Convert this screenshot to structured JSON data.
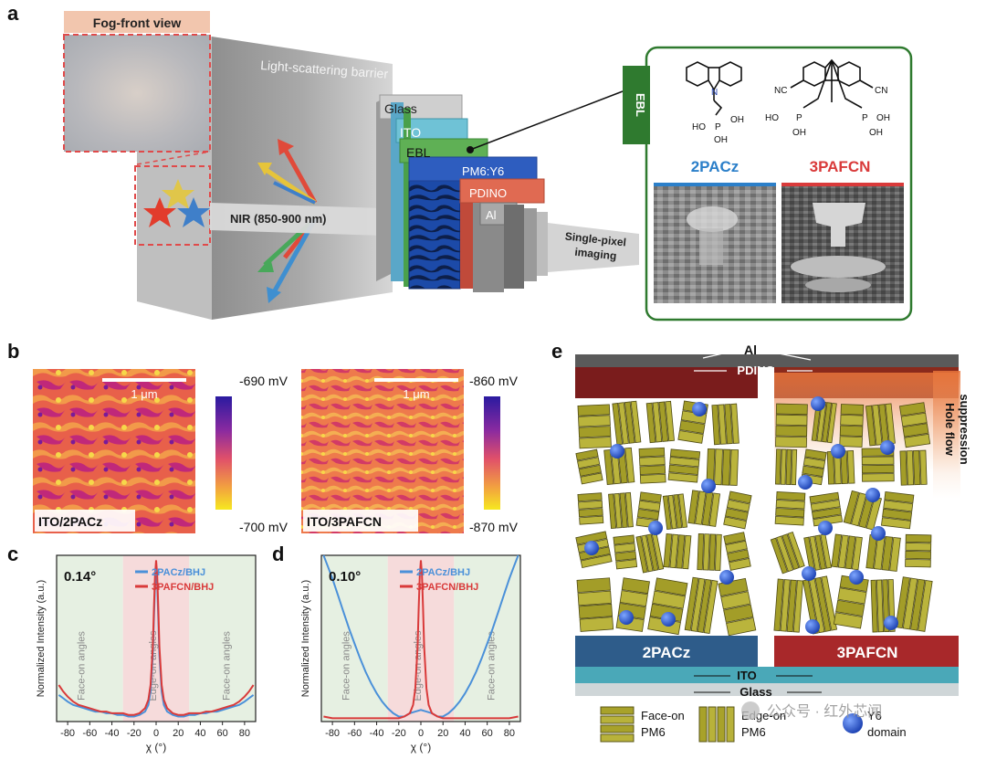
{
  "panels": {
    "a": {
      "letter": "a",
      "fog_label": "Fog-front view",
      "barrier_label": "Light-scattering barrier",
      "nir_label": "NIR (850-900 nm)",
      "layers": [
        "Glass",
        "ITO",
        "EBL",
        "PM6:Y6",
        "PDINO",
        "Al"
      ],
      "imaging_label": [
        "Single-pixel",
        "imaging"
      ],
      "inset": {
        "side_label": "EBL",
        "mol1": {
          "name": "2PACz",
          "color": "#2b7fc9"
        },
        "mol2": {
          "name": "3PAFCN",
          "color": "#d93a3a"
        },
        "mol1_groups": [
          "HO",
          "OH",
          "OH"
        ],
        "mol2_groups": [
          "NC",
          "CN",
          "HO",
          "OH",
          "OH",
          "OH"
        ]
      }
    },
    "b": {
      "letter": "b",
      "left": {
        "scale_bar": "1 μm",
        "label": "ITO/2PACz",
        "max": "-690 mV",
        "min": "-700 mV"
      },
      "right": {
        "scale_bar": "1 μm",
        "label": "ITO/3PAFCN",
        "max": "-860 mV",
        "min": "-870 mV"
      }
    },
    "c": {
      "letter": "c",
      "angle": "0.14°"
    },
    "d": {
      "letter": "d",
      "angle": "0.10°"
    },
    "e": {
      "letter": "e",
      "al_label": "Al",
      "pdino_label": "PDINO",
      "hole_label": [
        "Hole flow",
        "suppression"
      ],
      "left_base": "2PACz",
      "right_base": "3PAFCN",
      "ito_label": "ITO",
      "glass_label": "Glass",
      "legend": [
        {
          "label": [
            "Face-on",
            "PM6"
          ]
        },
        {
          "label": [
            "Edge-on",
            "PM6"
          ]
        },
        {
          "label": [
            "Y6",
            "domain"
          ]
        }
      ],
      "watermark": "公众号 · 红外芯闻"
    }
  },
  "chart_data": [
    {
      "type": "line",
      "panel": "c",
      "xlabel": "χ (°)",
      "ylabel": "Normalized Intensity (a.u.)",
      "xlim": [
        -90,
        90
      ],
      "ylim": [
        0,
        1
      ],
      "xticks": [
        -80,
        -60,
        -40,
        -20,
        0,
        20,
        40,
        60,
        80
      ],
      "regions": [
        {
          "label": "Face-on angles",
          "range": [
            -90,
            -30
          ],
          "color": "#e6f0e2"
        },
        {
          "label": "Edge-on angles",
          "range": [
            -30,
            30
          ],
          "color": "#f6dbdb"
        },
        {
          "label": "Face-on angles",
          "range": [
            30,
            90
          ],
          "color": "#e6f0e2"
        }
      ],
      "series": [
        {
          "name": "2PACz/BHJ",
          "color": "#4a90d9",
          "x": [
            -88,
            -84,
            -80,
            -75,
            -70,
            -65,
            -60,
            -55,
            -50,
            -45,
            -40,
            -35,
            -30,
            -25,
            -20,
            -15,
            -10,
            -7,
            -5,
            -3,
            -2,
            -1,
            0,
            1,
            2,
            3,
            5,
            7,
            10,
            15,
            20,
            25,
            30,
            35,
            40,
            45,
            50,
            55,
            60,
            65,
            70,
            75,
            80,
            84,
            88
          ],
          "y": [
            0.16,
            0.14,
            0.12,
            0.1,
            0.09,
            0.08,
            0.07,
            0.06,
            0.06,
            0.05,
            0.05,
            0.04,
            0.04,
            0.03,
            0.03,
            0.04,
            0.06,
            0.1,
            0.18,
            0.4,
            0.62,
            0.82,
            0.9,
            0.82,
            0.62,
            0.4,
            0.18,
            0.1,
            0.06,
            0.04,
            0.03,
            0.03,
            0.04,
            0.04,
            0.05,
            0.05,
            0.06,
            0.06,
            0.07,
            0.08,
            0.09,
            0.1,
            0.12,
            0.14,
            0.16
          ]
        },
        {
          "name": "3PAFCN/BHJ",
          "color": "#d93a3a",
          "x": [
            -88,
            -84,
            -80,
            -75,
            -70,
            -65,
            -60,
            -55,
            -50,
            -45,
            -40,
            -35,
            -30,
            -25,
            -20,
            -15,
            -10,
            -7,
            -5,
            -3,
            -2,
            -1,
            0,
            1,
            2,
            3,
            5,
            7,
            10,
            15,
            20,
            25,
            30,
            35,
            40,
            45,
            50,
            55,
            60,
            65,
            70,
            75,
            80,
            84,
            88
          ],
          "y": [
            0.22,
            0.18,
            0.15,
            0.12,
            0.1,
            0.09,
            0.08,
            0.07,
            0.06,
            0.06,
            0.05,
            0.05,
            0.05,
            0.04,
            0.04,
            0.05,
            0.08,
            0.13,
            0.22,
            0.45,
            0.68,
            0.88,
            0.97,
            0.88,
            0.68,
            0.45,
            0.22,
            0.13,
            0.08,
            0.05,
            0.04,
            0.04,
            0.05,
            0.05,
            0.05,
            0.06,
            0.06,
            0.07,
            0.08,
            0.09,
            0.1,
            0.12,
            0.15,
            0.18,
            0.22
          ]
        }
      ]
    },
    {
      "type": "line",
      "panel": "d",
      "xlabel": "χ (°)",
      "ylabel": "Normalized Intensity (a.u.)",
      "xlim": [
        -90,
        90
      ],
      "ylim": [
        0,
        1
      ],
      "xticks": [
        -80,
        -60,
        -40,
        -20,
        0,
        20,
        40,
        60,
        80
      ],
      "regions": [
        {
          "label": "Face-on angles",
          "range": [
            -90,
            -30
          ],
          "color": "#e6f0e2"
        },
        {
          "label": "Edge-on angles",
          "range": [
            -30,
            30
          ],
          "color": "#f6dbdb"
        },
        {
          "label": "Face-on angles",
          "range": [
            30,
            90
          ],
          "color": "#e6f0e2"
        }
      ],
      "series": [
        {
          "name": "2PACz/BHJ",
          "color": "#4a90d9",
          "x": [
            -88,
            -84,
            -80,
            -75,
            -70,
            -65,
            -60,
            -55,
            -50,
            -45,
            -40,
            -35,
            -30,
            -25,
            -20,
            -15,
            -10,
            -5,
            0,
            5,
            10,
            15,
            20,
            25,
            30,
            35,
            40,
            45,
            50,
            55,
            60,
            65,
            70,
            75,
            80,
            84,
            88
          ],
          "y": [
            1.0,
            0.93,
            0.86,
            0.76,
            0.66,
            0.56,
            0.47,
            0.38,
            0.3,
            0.23,
            0.17,
            0.12,
            0.08,
            0.05,
            0.03,
            0.03,
            0.05,
            0.06,
            0.07,
            0.06,
            0.05,
            0.03,
            0.03,
            0.05,
            0.08,
            0.12,
            0.17,
            0.23,
            0.3,
            0.38,
            0.47,
            0.56,
            0.66,
            0.76,
            0.86,
            0.93,
            1.0
          ]
        },
        {
          "name": "3PAFCN/BHJ",
          "color": "#d93a3a",
          "x": [
            -88,
            -80,
            -70,
            -60,
            -50,
            -40,
            -30,
            -20,
            -15,
            -10,
            -7,
            -5,
            -3,
            -2,
            -1,
            0,
            1,
            2,
            3,
            5,
            7,
            10,
            15,
            20,
            30,
            40,
            50,
            60,
            70,
            80,
            88
          ],
          "y": [
            0.03,
            0.02,
            0.02,
            0.02,
            0.02,
            0.02,
            0.02,
            0.02,
            0.03,
            0.05,
            0.1,
            0.2,
            0.45,
            0.68,
            0.88,
            0.97,
            0.88,
            0.68,
            0.45,
            0.2,
            0.1,
            0.05,
            0.03,
            0.02,
            0.02,
            0.02,
            0.02,
            0.02,
            0.02,
            0.02,
            0.03
          ]
        }
      ]
    }
  ]
}
